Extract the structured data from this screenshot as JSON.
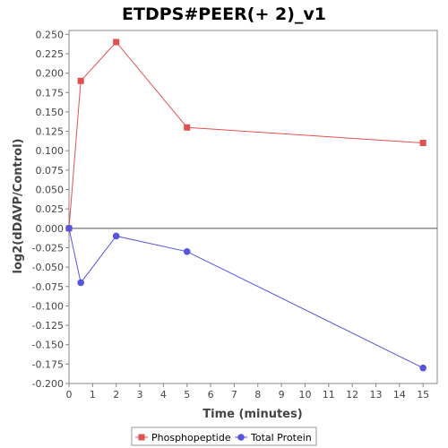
{
  "chart_data": {
    "type": "line",
    "title": "ETDPS#PEER(+ 2)_v1",
    "xlabel": "Time (minutes)",
    "ylabel": "log2(dDAVP/Control)",
    "xlim": [
      0,
      15.6
    ],
    "ylim": [
      -0.2,
      0.255
    ],
    "xticks": [
      0,
      1,
      2,
      3,
      4,
      5,
      6,
      7,
      8,
      9,
      10,
      11,
      12,
      13,
      14,
      15
    ],
    "yticks": [
      -0.2,
      -0.175,
      -0.15,
      -0.125,
      -0.1,
      -0.075,
      -0.05,
      -0.025,
      0,
      0.025,
      0.05,
      0.075,
      0.1,
      0.125,
      0.15,
      0.175,
      0.2,
      0.225,
      0.25
    ],
    "zero_line": true,
    "grid": false,
    "legend_position": "bottom-center",
    "series": [
      {
        "name": "Phosphopeptide",
        "color": "#e05050",
        "marker": "square",
        "x": [
          0,
          0.5,
          2,
          5,
          15
        ],
        "y": [
          0.0,
          0.19,
          0.24,
          0.13,
          0.11
        ]
      },
      {
        "name": "Total Protein",
        "color": "#5555dd",
        "marker": "circle",
        "x": [
          0,
          0.5,
          2,
          5,
          15
        ],
        "y": [
          0.0,
          -0.07,
          -0.01,
          -0.03,
          -0.18
        ]
      }
    ]
  }
}
